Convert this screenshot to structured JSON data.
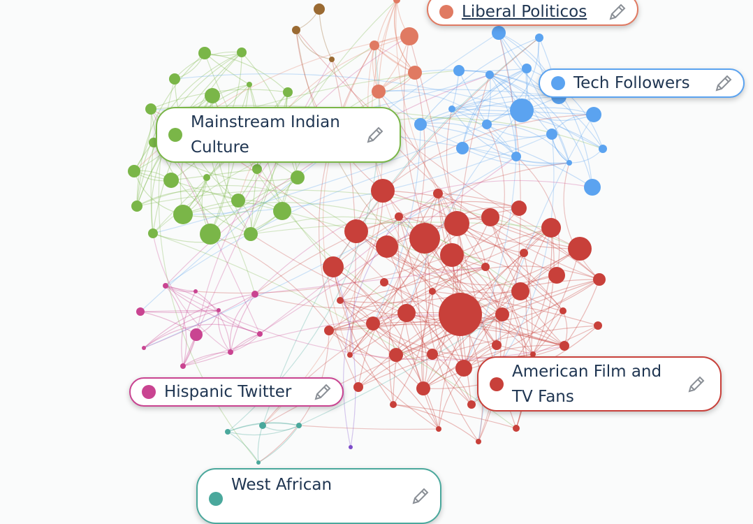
{
  "clusters": [
    {
      "label": "Liberal Politicos",
      "color": "#e07a62"
    },
    {
      "label": "Tech Followers",
      "color": "#5ba3f0"
    },
    {
      "label": "Mainstream Indian Culture",
      "color": "#7ab648"
    },
    {
      "label": "Hispanic Twitter",
      "color": "#c94491"
    },
    {
      "label": "American Film and TV Fans",
      "color": "#c8403a"
    },
    {
      "label": "West African",
      "color": "#4aa89c"
    }
  ]
}
